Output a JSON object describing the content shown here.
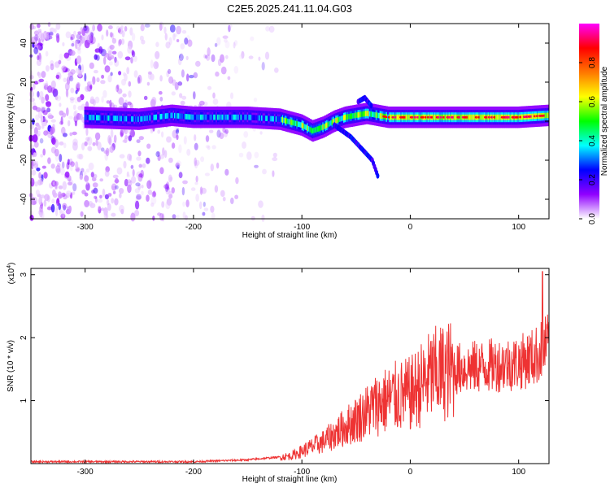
{
  "title": "C2E5.2025.241.11.04.G03",
  "chart_data": [
    {
      "type": "heatmap",
      "xlabel": "Height of straight line (km)",
      "ylabel": "Frequency (Hz)",
      "xlim": [
        -350,
        128
      ],
      "ylim": [
        -50,
        50
      ],
      "x_ticks": [
        -300,
        -200,
        -100,
        0,
        100
      ],
      "y_ticks": [
        -40,
        -20,
        0,
        20,
        40
      ],
      "colorbar": {
        "label": "Normalized spectral amplitude",
        "range": [
          0,
          1
        ],
        "ticks": [
          "0.0",
          "0.2",
          "0.4",
          "0.6",
          "0.8"
        ],
        "colors": [
          "#ffffff",
          "#9000ff",
          "#0000ff",
          "#00ffff",
          "#00ff00",
          "#ffff00",
          "#ff7700",
          "#ff0000",
          "#ff00ff"
        ]
      },
      "ridge": {
        "x": [
          -300,
          -250,
          -220,
          -200,
          -150,
          -120,
          -100,
          -90,
          -80,
          -70,
          -60,
          -50,
          -40,
          -30,
          -20,
          0,
          50,
          100,
          128
        ],
        "y": [
          2,
          1,
          3,
          2,
          2,
          1,
          -2,
          -5,
          -3,
          0,
          2,
          3,
          4,
          3,
          2,
          2,
          2,
          2,
          3
        ]
      },
      "branches": [
        {
          "x": [
            -70,
            -55,
            -45,
            -35,
            -30
          ],
          "y": [
            -2,
            -8,
            -14,
            -20,
            -28
          ]
        },
        {
          "x": [
            -48,
            -42,
            -36
          ],
          "y": [
            10,
            12,
            8
          ]
        }
      ],
      "noise_region": {
        "x": [
          -350,
          -120
        ],
        "y": [
          -50,
          50
        ]
      }
    },
    {
      "type": "line",
      "xlabel": "Height of straight line (km)",
      "ylabel": "SNR (10 * v/v)",
      "y_scale_label": "(x10",
      "y_scale_exp": "4",
      "y_scale_close": ")",
      "xlim": [
        -350,
        128
      ],
      "ylim": [
        0,
        3.1
      ],
      "x_ticks": [
        -300,
        -200,
        -100,
        0,
        100
      ],
      "y_ticks": [
        1,
        2,
        3
      ],
      "color": "#ee3333",
      "envelope": {
        "x": [
          -350,
          -200,
          -150,
          -110,
          -80,
          -50,
          -30,
          -15,
          0,
          20,
          40,
          70,
          100,
          115,
          128
        ],
        "y": [
          0.03,
          0.03,
          0.06,
          0.12,
          0.35,
          0.7,
          0.95,
          1.05,
          1.1,
          1.4,
          1.5,
          1.55,
          1.6,
          1.7,
          1.9
        ]
      },
      "peak": {
        "x": 122,
        "y": 3.05
      }
    }
  ]
}
